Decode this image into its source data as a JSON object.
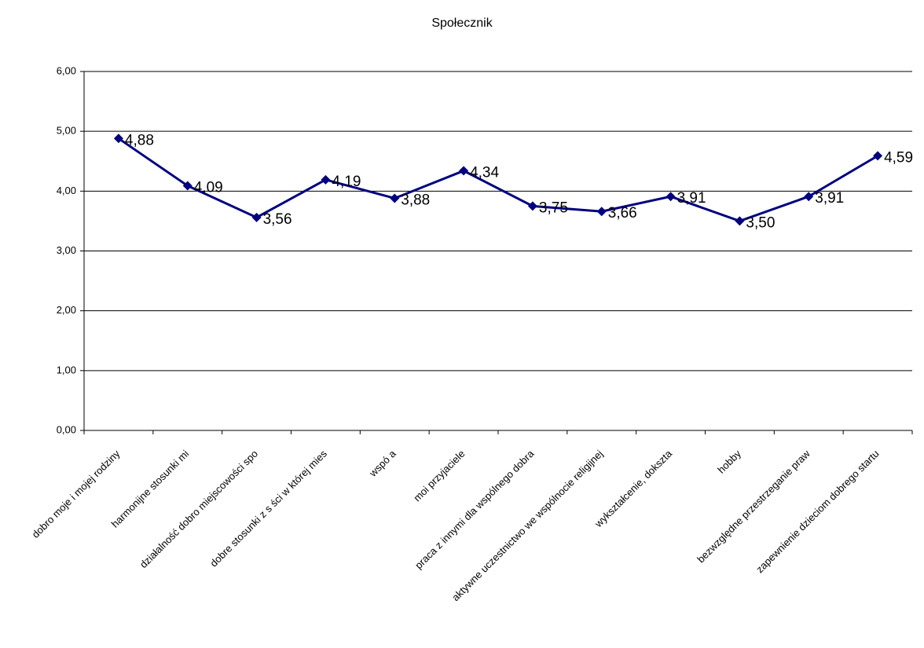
{
  "chart_data": {
    "type": "line",
    "title": "Społecznik",
    "categories": [
      "dobro moje i mojej rodziny",
      "harmonijne stosunki mi",
      "działalność dobro miejscowości spo",
      "dobre stosunki z s ści w której mies",
      "wspó a",
      "moi przyjaciele",
      "praca z innymi dla wspólnego dobra",
      "aktywne uczestnictwo we wspólnocie religijnej",
      "wykształcenie, dokszta",
      "hobby",
      "bezwzględne przestrzeganie praw",
      "zapewnienie dzieciom dobrego startu"
    ],
    "series": [
      {
        "name": "Społecznik",
        "color": "#000080",
        "values": [
          4.88,
          4.09,
          3.56,
          4.19,
          3.88,
          4.34,
          3.75,
          3.66,
          3.91,
          3.5,
          3.91,
          4.59
        ],
        "value_labels": [
          "4,88",
          "4,09",
          "3,56",
          "4,19",
          "3,88",
          "4,34",
          "3,75",
          "3,66",
          "3,91",
          "3,50",
          "3,91",
          "4,59"
        ]
      }
    ],
    "ylim": [
      0,
      6
    ],
    "yticks": [
      {
        "value": 0,
        "label": "0,00"
      },
      {
        "value": 1,
        "label": "1,00"
      },
      {
        "value": 2,
        "label": "2,00"
      },
      {
        "value": 3,
        "label": "3,00"
      },
      {
        "value": 4,
        "label": "4,00"
      },
      {
        "value": 5,
        "label": "5,00"
      },
      {
        "value": 6,
        "label": "6,00"
      }
    ],
    "grid": true
  }
}
